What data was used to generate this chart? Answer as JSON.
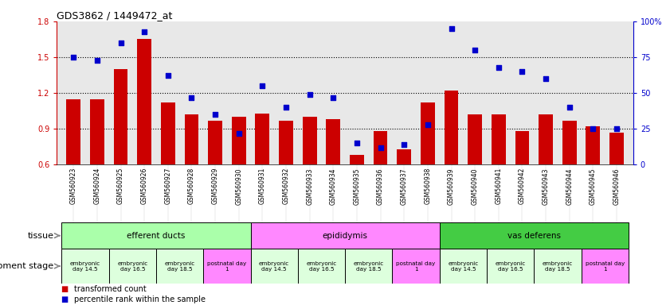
{
  "title": "GDS3862 / 1449472_at",
  "samples": [
    "GSM560923",
    "GSM560924",
    "GSM560925",
    "GSM560926",
    "GSM560927",
    "GSM560928",
    "GSM560929",
    "GSM560930",
    "GSM560931",
    "GSM560932",
    "GSM560933",
    "GSM560934",
    "GSM560935",
    "GSM560936",
    "GSM560937",
    "GSM560938",
    "GSM560939",
    "GSM560940",
    "GSM560941",
    "GSM560942",
    "GSM560943",
    "GSM560944",
    "GSM560945",
    "GSM560946"
  ],
  "transformed_count": [
    1.15,
    1.15,
    1.4,
    1.65,
    1.12,
    1.02,
    0.97,
    1.0,
    1.03,
    0.97,
    1.0,
    0.98,
    0.68,
    0.88,
    0.73,
    1.12,
    1.22,
    1.02,
    1.02,
    0.88,
    1.02,
    0.97,
    0.92,
    0.87
  ],
  "percentile_rank": [
    75,
    73,
    85,
    93,
    62,
    47,
    35,
    22,
    55,
    40,
    49,
    47,
    15,
    12,
    14,
    28,
    95,
    80,
    68,
    65,
    60,
    40,
    25,
    25
  ],
  "bar_color": "#cc0000",
  "dot_color": "#0000cc",
  "ylim_left": [
    0.6,
    1.8
  ],
  "ylim_right": [
    0,
    100
  ],
  "yticks_left": [
    0.6,
    0.9,
    1.2,
    1.5,
    1.8
  ],
  "yticks_right": [
    0,
    25,
    50,
    75,
    100
  ],
  "hlines": [
    0.9,
    1.2,
    1.5
  ],
  "tissue_groups": [
    {
      "label": "efferent ducts",
      "start": 0,
      "end": 7,
      "color": "#aaffaa"
    },
    {
      "label": "epididymis",
      "start": 8,
      "end": 15,
      "color": "#ff88ff"
    },
    {
      "label": "vas deferens",
      "start": 16,
      "end": 23,
      "color": "#44cc44"
    }
  ],
  "dev_stage_groups": [
    {
      "label": "embryonic\nday 14.5",
      "start": 0,
      "end": 1,
      "color": "#ddffdd"
    },
    {
      "label": "embryonic\nday 16.5",
      "start": 2,
      "end": 3,
      "color": "#ddffdd"
    },
    {
      "label": "embryonic\nday 18.5",
      "start": 4,
      "end": 5,
      "color": "#ddffdd"
    },
    {
      "label": "postnatal day\n1",
      "start": 6,
      "end": 7,
      "color": "#ff88ff"
    },
    {
      "label": "embryonic\nday 14.5",
      "start": 8,
      "end": 9,
      "color": "#ddffdd"
    },
    {
      "label": "embryonic\nday 16.5",
      "start": 10,
      "end": 11,
      "color": "#ddffdd"
    },
    {
      "label": "embryonic\nday 18.5",
      "start": 12,
      "end": 13,
      "color": "#ddffdd"
    },
    {
      "label": "postnatal day\n1",
      "start": 14,
      "end": 15,
      "color": "#ff88ff"
    },
    {
      "label": "embryonic\nday 14.5",
      "start": 16,
      "end": 17,
      "color": "#ddffdd"
    },
    {
      "label": "embryonic\nday 16.5",
      "start": 18,
      "end": 19,
      "color": "#ddffdd"
    },
    {
      "label": "embryonic\nday 18.5",
      "start": 20,
      "end": 21,
      "color": "#ddffdd"
    },
    {
      "label": "postnatal day\n1",
      "start": 22,
      "end": 23,
      "color": "#ff88ff"
    }
  ],
  "legend_bar_label": "transformed count",
  "legend_dot_label": "percentile rank within the sample",
  "tissue_label": "tissue",
  "dev_stage_label": "development stage",
  "bg_color": "#ffffff",
  "axis_bg": "#e8e8e8"
}
